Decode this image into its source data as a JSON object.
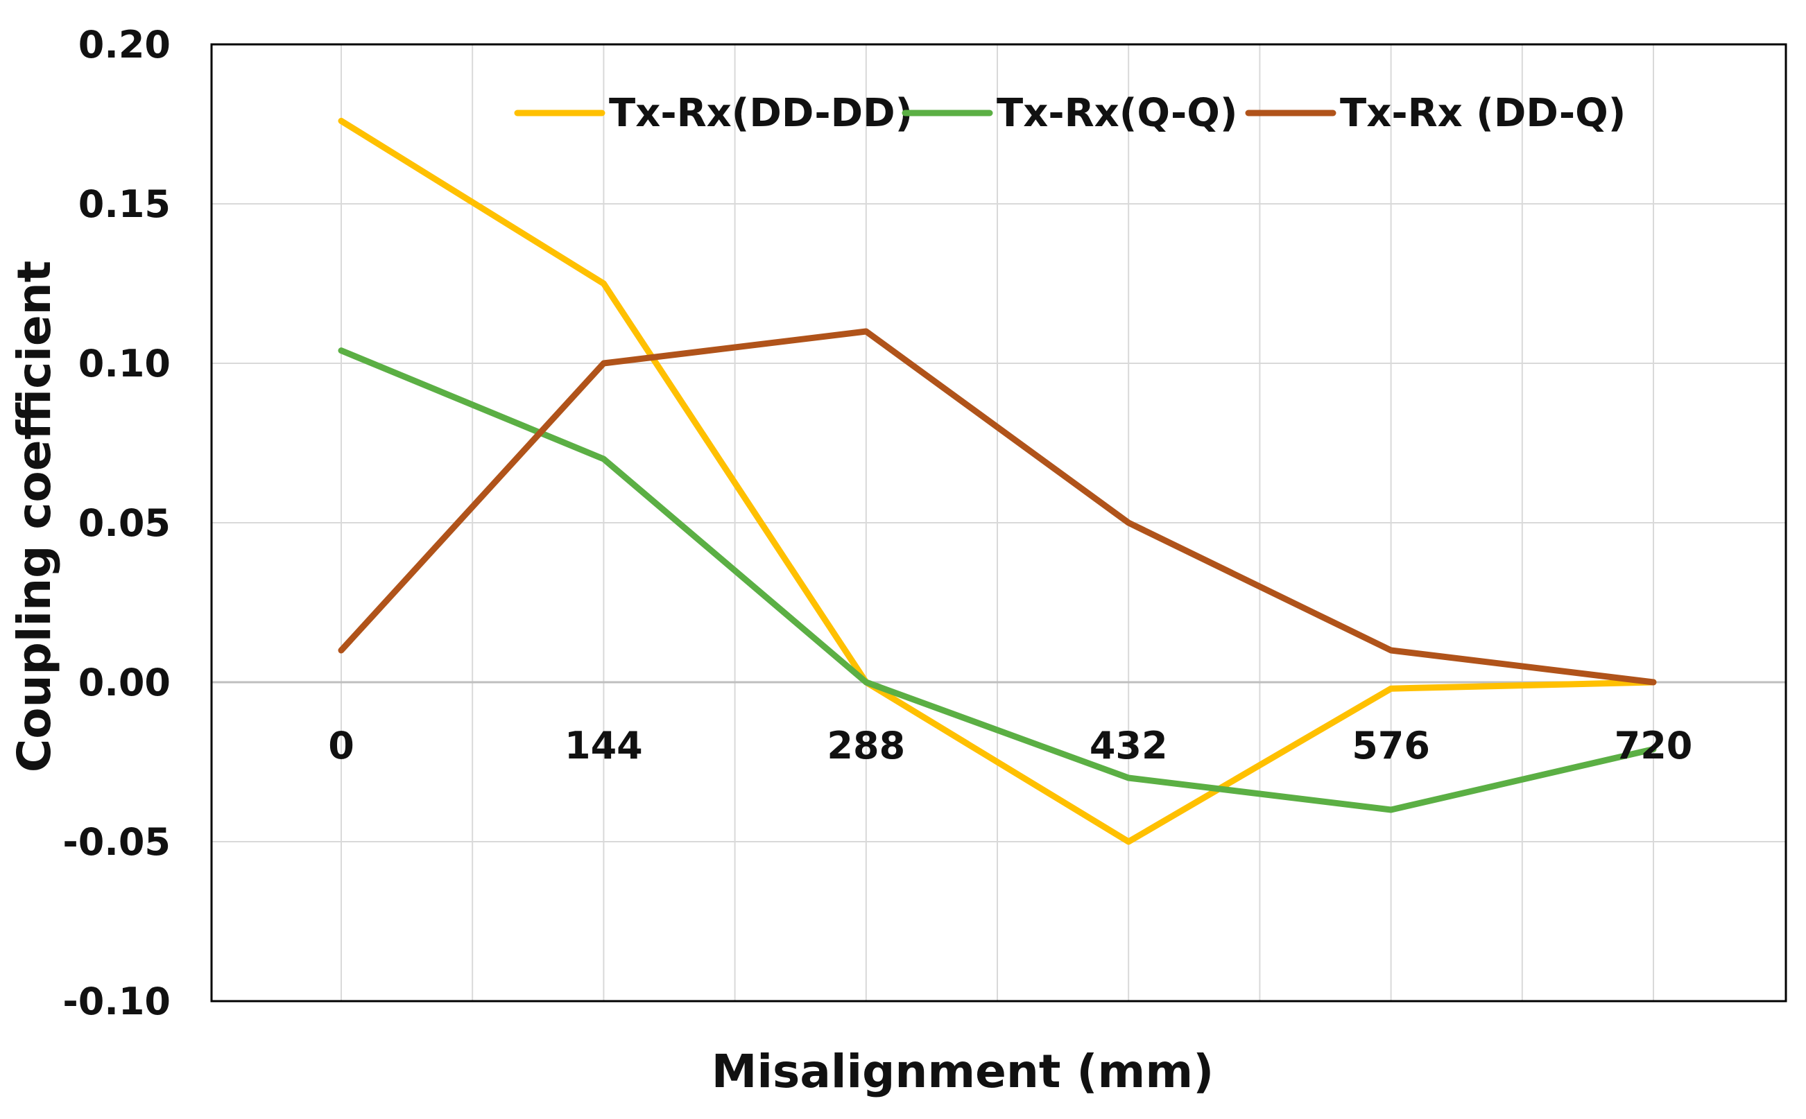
{
  "chart_data": {
    "type": "line",
    "title": "",
    "xlabel": "Misalignment (mm)",
    "ylabel": "Coupling coefficient",
    "categories": [
      "0",
      "144",
      "288",
      "432",
      "576",
      "720"
    ],
    "x": [
      0,
      144,
      288,
      432,
      576,
      720
    ],
    "ylim": [
      -0.1,
      0.2
    ],
    "yticks": [
      -0.1,
      -0.05,
      0.0,
      0.05,
      0.1,
      0.15,
      0.2
    ],
    "ytick_labels": [
      "-0.10",
      "-0.05",
      "0.00",
      "0.05",
      "0.10",
      "0.15",
      "0.20"
    ],
    "grid": true,
    "legend_position": "top",
    "series": [
      {
        "name": "Tx-Rx(DD-DD)",
        "color": "#FFC000",
        "values": [
          0.176,
          0.125,
          0.0,
          -0.05,
          -0.002,
          0.0
        ]
      },
      {
        "name": "Tx-Rx(Q-Q)",
        "color": "#5BAF44",
        "values": [
          0.104,
          0.07,
          0.0,
          -0.03,
          -0.04,
          -0.021
        ]
      },
      {
        "name": "Tx-Rx (DD-Q)",
        "color": "#B0531A",
        "values": [
          0.01,
          0.1,
          0.11,
          0.05,
          0.01,
          0.0
        ]
      }
    ]
  }
}
